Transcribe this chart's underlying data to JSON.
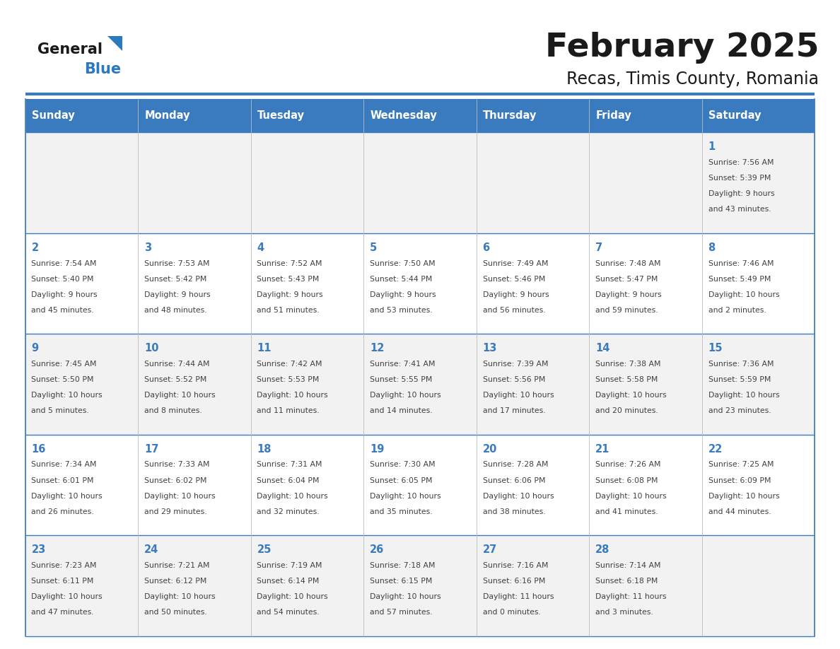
{
  "title": "February 2025",
  "subtitle": "Recas, Timis County, Romania",
  "days_of_week": [
    "Sunday",
    "Monday",
    "Tuesday",
    "Wednesday",
    "Thursday",
    "Friday",
    "Saturday"
  ],
  "header_color": "#3a7abf",
  "header_text_color": "#ffffff",
  "cell_bg_even": "#f2f2f2",
  "cell_bg_odd": "#ffffff",
  "line_color": "#3a7abf",
  "day_number_color": "#3a7abf",
  "text_color": "#404040",
  "title_color": "#1a1a1a",
  "logo_general_color": "#1a1a1a",
  "logo_blue_color": "#2a7abf",
  "calendar": [
    [
      null,
      null,
      null,
      null,
      null,
      null,
      {
        "day": "1",
        "sunrise": "7:56 AM",
        "sunset": "5:39 PM",
        "daylight_line1": "9 hours",
        "daylight_line2": "and 43 minutes."
      }
    ],
    [
      {
        "day": "2",
        "sunrise": "7:54 AM",
        "sunset": "5:40 PM",
        "daylight_line1": "9 hours",
        "daylight_line2": "and 45 minutes."
      },
      {
        "day": "3",
        "sunrise": "7:53 AM",
        "sunset": "5:42 PM",
        "daylight_line1": "9 hours",
        "daylight_line2": "and 48 minutes."
      },
      {
        "day": "4",
        "sunrise": "7:52 AM",
        "sunset": "5:43 PM",
        "daylight_line1": "9 hours",
        "daylight_line2": "and 51 minutes."
      },
      {
        "day": "5",
        "sunrise": "7:50 AM",
        "sunset": "5:44 PM",
        "daylight_line1": "9 hours",
        "daylight_line2": "and 53 minutes."
      },
      {
        "day": "6",
        "sunrise": "7:49 AM",
        "sunset": "5:46 PM",
        "daylight_line1": "9 hours",
        "daylight_line2": "and 56 minutes."
      },
      {
        "day": "7",
        "sunrise": "7:48 AM",
        "sunset": "5:47 PM",
        "daylight_line1": "9 hours",
        "daylight_line2": "and 59 minutes."
      },
      {
        "day": "8",
        "sunrise": "7:46 AM",
        "sunset": "5:49 PM",
        "daylight_line1": "10 hours",
        "daylight_line2": "and 2 minutes."
      }
    ],
    [
      {
        "day": "9",
        "sunrise": "7:45 AM",
        "sunset": "5:50 PM",
        "daylight_line1": "10 hours",
        "daylight_line2": "and 5 minutes."
      },
      {
        "day": "10",
        "sunrise": "7:44 AM",
        "sunset": "5:52 PM",
        "daylight_line1": "10 hours",
        "daylight_line2": "and 8 minutes."
      },
      {
        "day": "11",
        "sunrise": "7:42 AM",
        "sunset": "5:53 PM",
        "daylight_line1": "10 hours",
        "daylight_line2": "and 11 minutes."
      },
      {
        "day": "12",
        "sunrise": "7:41 AM",
        "sunset": "5:55 PM",
        "daylight_line1": "10 hours",
        "daylight_line2": "and 14 minutes."
      },
      {
        "day": "13",
        "sunrise": "7:39 AM",
        "sunset": "5:56 PM",
        "daylight_line1": "10 hours",
        "daylight_line2": "and 17 minutes."
      },
      {
        "day": "14",
        "sunrise": "7:38 AM",
        "sunset": "5:58 PM",
        "daylight_line1": "10 hours",
        "daylight_line2": "and 20 minutes."
      },
      {
        "day": "15",
        "sunrise": "7:36 AM",
        "sunset": "5:59 PM",
        "daylight_line1": "10 hours",
        "daylight_line2": "and 23 minutes."
      }
    ],
    [
      {
        "day": "16",
        "sunrise": "7:34 AM",
        "sunset": "6:01 PM",
        "daylight_line1": "10 hours",
        "daylight_line2": "and 26 minutes."
      },
      {
        "day": "17",
        "sunrise": "7:33 AM",
        "sunset": "6:02 PM",
        "daylight_line1": "10 hours",
        "daylight_line2": "and 29 minutes."
      },
      {
        "day": "18",
        "sunrise": "7:31 AM",
        "sunset": "6:04 PM",
        "daylight_line1": "10 hours",
        "daylight_line2": "and 32 minutes."
      },
      {
        "day": "19",
        "sunrise": "7:30 AM",
        "sunset": "6:05 PM",
        "daylight_line1": "10 hours",
        "daylight_line2": "and 35 minutes."
      },
      {
        "day": "20",
        "sunrise": "7:28 AM",
        "sunset": "6:06 PM",
        "daylight_line1": "10 hours",
        "daylight_line2": "and 38 minutes."
      },
      {
        "day": "21",
        "sunrise": "7:26 AM",
        "sunset": "6:08 PM",
        "daylight_line1": "10 hours",
        "daylight_line2": "and 41 minutes."
      },
      {
        "day": "22",
        "sunrise": "7:25 AM",
        "sunset": "6:09 PM",
        "daylight_line1": "10 hours",
        "daylight_line2": "and 44 minutes."
      }
    ],
    [
      {
        "day": "23",
        "sunrise": "7:23 AM",
        "sunset": "6:11 PM",
        "daylight_line1": "10 hours",
        "daylight_line2": "and 47 minutes."
      },
      {
        "day": "24",
        "sunrise": "7:21 AM",
        "sunset": "6:12 PM",
        "daylight_line1": "10 hours",
        "daylight_line2": "and 50 minutes."
      },
      {
        "day": "25",
        "sunrise": "7:19 AM",
        "sunset": "6:14 PM",
        "daylight_line1": "10 hours",
        "daylight_line2": "and 54 minutes."
      },
      {
        "day": "26",
        "sunrise": "7:18 AM",
        "sunset": "6:15 PM",
        "daylight_line1": "10 hours",
        "daylight_line2": "and 57 minutes."
      },
      {
        "day": "27",
        "sunrise": "7:16 AM",
        "sunset": "6:16 PM",
        "daylight_line1": "11 hours",
        "daylight_line2": "and 0 minutes."
      },
      {
        "day": "28",
        "sunrise": "7:14 AM",
        "sunset": "6:18 PM",
        "daylight_line1": "11 hours",
        "daylight_line2": "and 3 minutes."
      },
      null
    ]
  ],
  "figsize": [
    11.88,
    9.18
  ],
  "dpi": 100
}
